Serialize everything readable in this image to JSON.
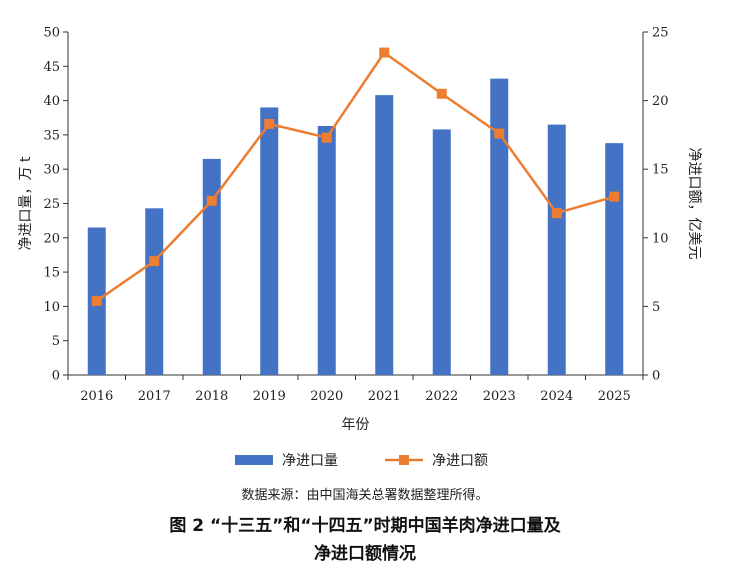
{
  "chart_data": {
    "type": "bar+line",
    "categories": [
      "2016",
      "2017",
      "2018",
      "2019",
      "2020",
      "2021",
      "2022",
      "2023",
      "2024",
      "2025"
    ],
    "series": [
      {
        "name": "净进口量",
        "type": "bar",
        "axis": "left",
        "values": [
          21.5,
          24.3,
          31.5,
          39.0,
          36.3,
          40.8,
          35.8,
          43.2,
          36.5,
          33.8
        ]
      },
      {
        "name": "净进口额",
        "type": "line",
        "axis": "right",
        "values": [
          5.4,
          8.3,
          12.7,
          18.3,
          17.3,
          23.5,
          20.5,
          17.6,
          11.8,
          13.0
        ]
      }
    ],
    "xlabel": "年份",
    "ylabel_left": "净进口量，万 t",
    "ylabel_right": "净进口额，亿美元",
    "ylim_left": [
      0,
      50
    ],
    "ylim_right": [
      0,
      25
    ],
    "yticks_left": [
      "0",
      "5",
      "10",
      "15",
      "20",
      "25",
      "30",
      "35",
      "40",
      "45",
      "50"
    ],
    "yticks_right": [
      "0",
      "5",
      "10",
      "15",
      "20",
      "25"
    ],
    "legend": [
      "净进口量",
      "净进口额"
    ],
    "colors": {
      "bar": "#4472c4",
      "line": "#ed7d31",
      "axis": "#333333"
    }
  },
  "source_note": "数据来源：由中国海关总署数据整理所得。",
  "caption_line1": "图 2  “十三五”和“十四五”时期中国羊肉净进口量及",
  "caption_line2": "净进口额情况"
}
